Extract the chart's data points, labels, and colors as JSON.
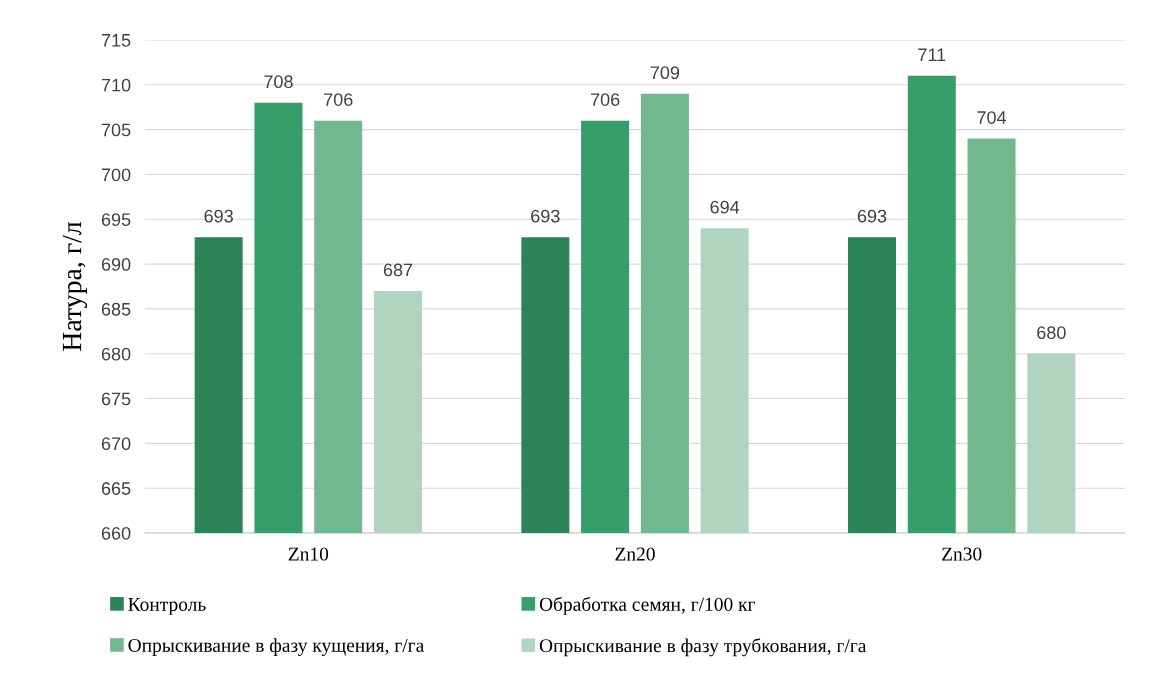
{
  "chart_data": {
    "type": "bar",
    "ylabel": "Натура, г/л",
    "categories": [
      "Zn10",
      "Zn20",
      "Zn30"
    ],
    "series": [
      {
        "name": "Контроль",
        "color": "#2a8456",
        "values": [
          693,
          693,
          693
        ]
      },
      {
        "name": "Обработка семян, г/100 кг",
        "color": "#369e68",
        "values": [
          708,
          706,
          711
        ]
      },
      {
        "name": "Опрыскивание в фазу кущения, г/га",
        "color": "#72b88e",
        "values": [
          706,
          709,
          704
        ]
      },
      {
        "name": "Опрыскивание в фазу трубкования, г/га",
        "color": "#b0d4c0",
        "values": [
          687,
          694,
          680
        ]
      }
    ],
    "ylim": [
      660,
      715
    ],
    "yticks": [
      660,
      665,
      670,
      675,
      680,
      685,
      690,
      695,
      700,
      705,
      710,
      715
    ],
    "grid": "y",
    "legend": "bottom",
    "data_labels": true
  }
}
